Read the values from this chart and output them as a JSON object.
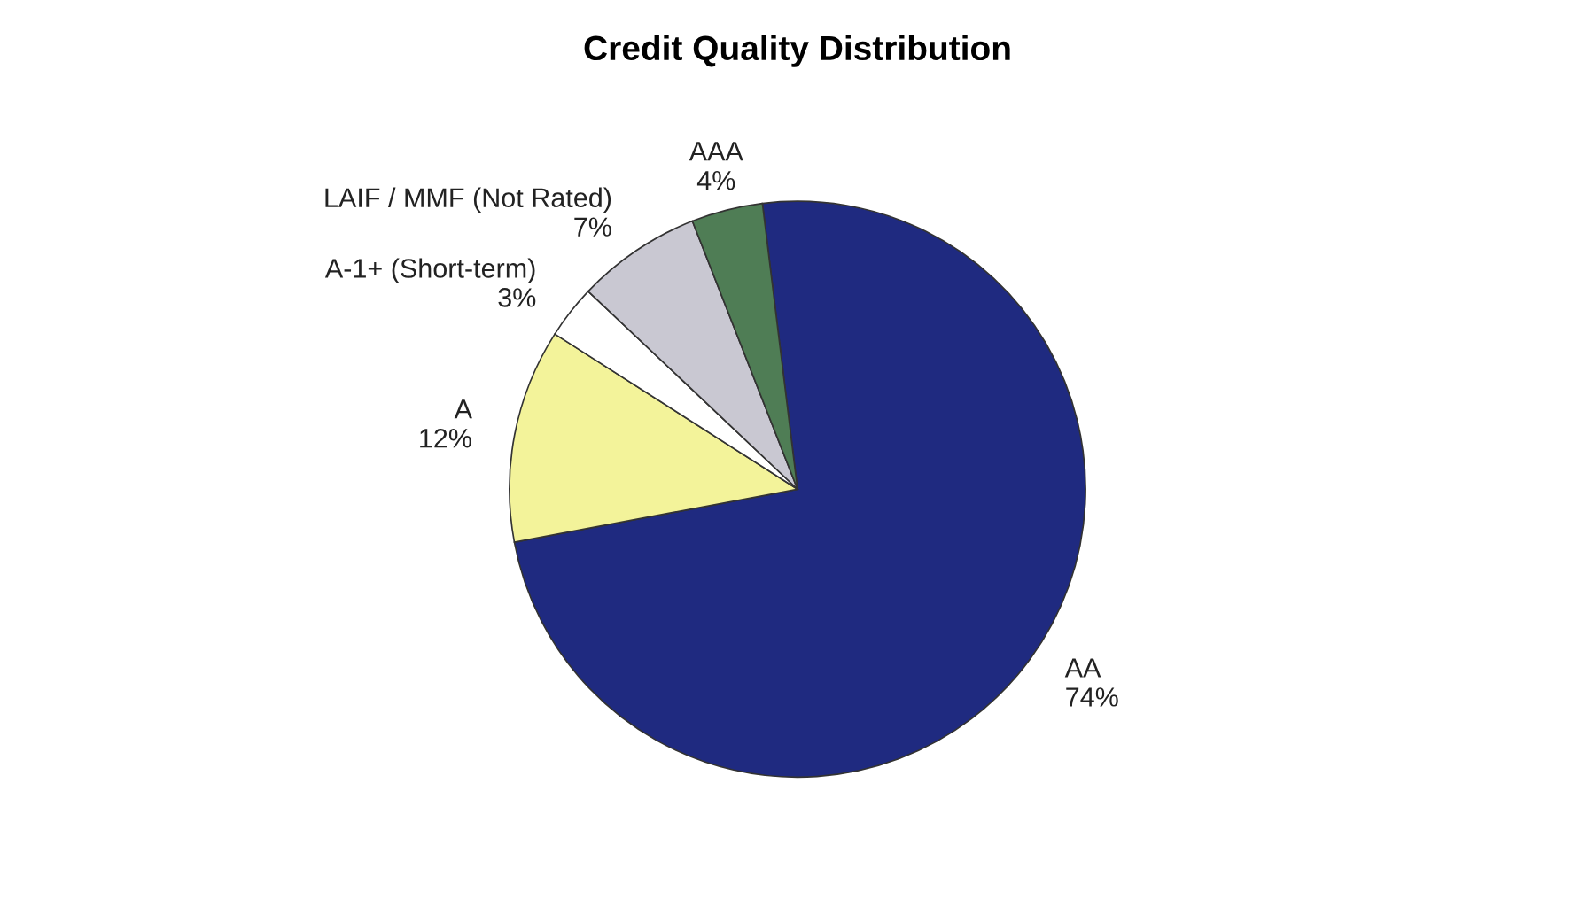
{
  "chart_data": {
    "type": "pie",
    "title": "Credit Quality Distribution",
    "categories": [
      "AA",
      "A",
      "A-1+ (Short-term)",
      "LAIF / MMF (Not Rated)",
      "AAA"
    ],
    "values": [
      74,
      12,
      3,
      7,
      4
    ],
    "value_labels": [
      "74%",
      "12%",
      "3%",
      "7%",
      "4%"
    ],
    "colors": [
      "#1f2a80",
      "#f3f39a",
      "#ffffff",
      "#c9c8d2",
      "#4f7d55"
    ],
    "legend": false
  }
}
